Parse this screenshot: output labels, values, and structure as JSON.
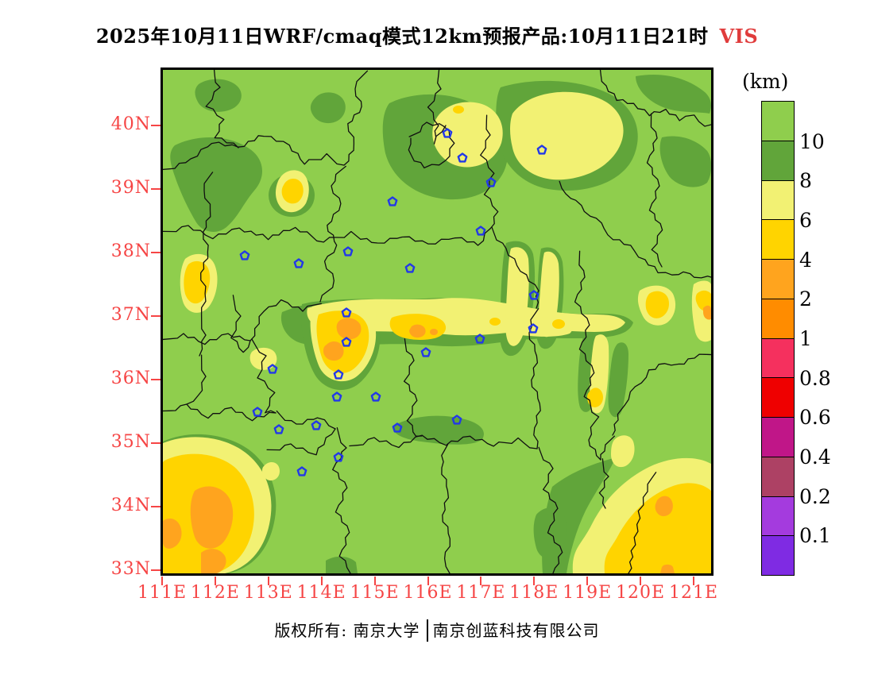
{
  "title": {
    "main": "2025年10月11日WRF/cmaq模式12km预报产品:10月11日21时",
    "variable": "VIS"
  },
  "legend": {
    "unit": "(km)",
    "box_colors": [
      "#8FCE4D",
      "#61A53A",
      "#F2F173",
      "#FFD400",
      "#FFA41E",
      "#FF8C00",
      "#F5305E",
      "#EF0000",
      "#C01688",
      "#AD4164",
      "#A43BDE",
      "#7F2BE3"
    ],
    "boundary_labels": [
      "10",
      "8",
      "6",
      "4",
      "2",
      "1",
      "0.8",
      "0.6",
      "0.4",
      "0.2",
      "0.1"
    ]
  },
  "axes": {
    "lat": [
      "40N",
      "39N",
      "38N",
      "37N",
      "36N",
      "35N",
      "34N",
      "33N"
    ],
    "lon": [
      "111E",
      "112E",
      "113E",
      "114E",
      "115E",
      "116E",
      "117E",
      "118E",
      "119E",
      "120E",
      "121E"
    ]
  },
  "map": {
    "marker_color": "#2238E8",
    "fill_palette": {
      "above_10": "#8FCE4D",
      "8_to_10": "#61A53A",
      "6_to_8": "#F2F173",
      "4_to_6": "#FFD400",
      "2_to_4": "#FFA41E"
    },
    "city_markers": [
      [
        358,
        80
      ],
      [
        377,
        111
      ],
      [
        413,
        142
      ],
      [
        477,
        101
      ],
      [
        289,
        166
      ],
      [
        311,
        250
      ],
      [
        400,
        203
      ],
      [
        103,
        234
      ],
      [
        171,
        244
      ],
      [
        233,
        229
      ],
      [
        231,
        306
      ],
      [
        231,
        343
      ],
      [
        221,
        384
      ],
      [
        219,
        412
      ],
      [
        268,
        412
      ],
      [
        331,
        356
      ],
      [
        399,
        339
      ],
      [
        466,
        326
      ],
      [
        467,
        284
      ],
      [
        138,
        377
      ],
      [
        119,
        431
      ],
      [
        146,
        453
      ],
      [
        193,
        448
      ],
      [
        295,
        451
      ],
      [
        370,
        441
      ],
      [
        175,
        506
      ],
      [
        221,
        488
      ]
    ]
  },
  "footer": {
    "owner": "版权所有: 南京大学",
    "company": "南京创蓝科技有限公司"
  }
}
